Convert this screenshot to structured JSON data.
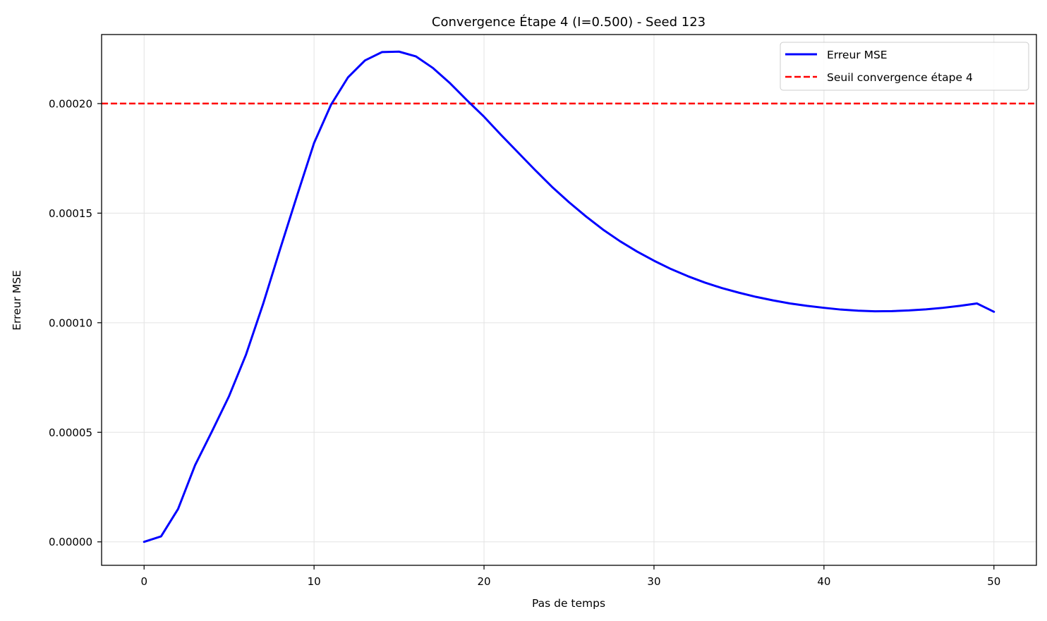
{
  "chart_data": {
    "type": "line",
    "title": "Convergence Étape 4 (I=0.500) - Seed 123",
    "xlabel": "Pas de temps",
    "ylabel": "Erreur MSE",
    "xlim": [
      -2.5,
      52.5
    ],
    "ylim": [
      -1.07e-05,
      0.0002315
    ],
    "xticks": [
      0,
      10,
      20,
      30,
      40,
      50
    ],
    "xtick_labels": [
      "0",
      "10",
      "20",
      "30",
      "40",
      "50"
    ],
    "yticks": [
      0.0,
      5e-05,
      0.0001,
      0.00015,
      0.0002
    ],
    "ytick_labels": [
      "0.00000",
      "0.00005",
      "0.00010",
      "0.00015",
      "0.00020"
    ],
    "grid": true,
    "legend_position": "top-right",
    "series": [
      {
        "name": "Erreur MSE",
        "color": "#0000ff",
        "style": "solid",
        "x": [
          0,
          1,
          2,
          3,
          4,
          5,
          6,
          7,
          8,
          9,
          10,
          11,
          12,
          13,
          14,
          15,
          16,
          17,
          18,
          19,
          20,
          21,
          22,
          23,
          24,
          25,
          26,
          27,
          28,
          29,
          30,
          31,
          32,
          33,
          34,
          35,
          36,
          37,
          38,
          39,
          40,
          41,
          42,
          43,
          44,
          45,
          46,
          47,
          48,
          49,
          50
        ],
        "y": [
          0.0,
          2.5e-06,
          1.5e-05,
          3.5e-05,
          5.05e-05,
          6.65e-05,
          8.55e-05,
          0.0001085,
          0.0001335,
          0.000158,
          0.000182,
          0.0001995,
          0.000212,
          0.0002197,
          0.0002235,
          0.0002237,
          0.0002215,
          0.0002162,
          0.0002093,
          0.0002015,
          0.000194,
          0.0001857,
          0.0001777,
          0.0001697,
          0.000162,
          0.000155,
          0.0001485,
          0.0001425,
          0.0001372,
          0.0001325,
          0.0001283,
          0.0001245,
          0.0001212,
          0.0001183,
          0.0001158,
          0.0001137,
          0.0001118,
          0.0001102,
          0.0001088,
          0.0001077,
          0.0001068,
          0.000106,
          0.0001055,
          0.0001052,
          0.0001053,
          0.0001056,
          0.0001061,
          0.0001068,
          0.0001077,
          0.0001088,
          0.000105
        ]
      },
      {
        "name": "Seuil convergence étape 4",
        "color": "#ff0000",
        "style": "dashed",
        "hline": 0.0002
      }
    ]
  }
}
